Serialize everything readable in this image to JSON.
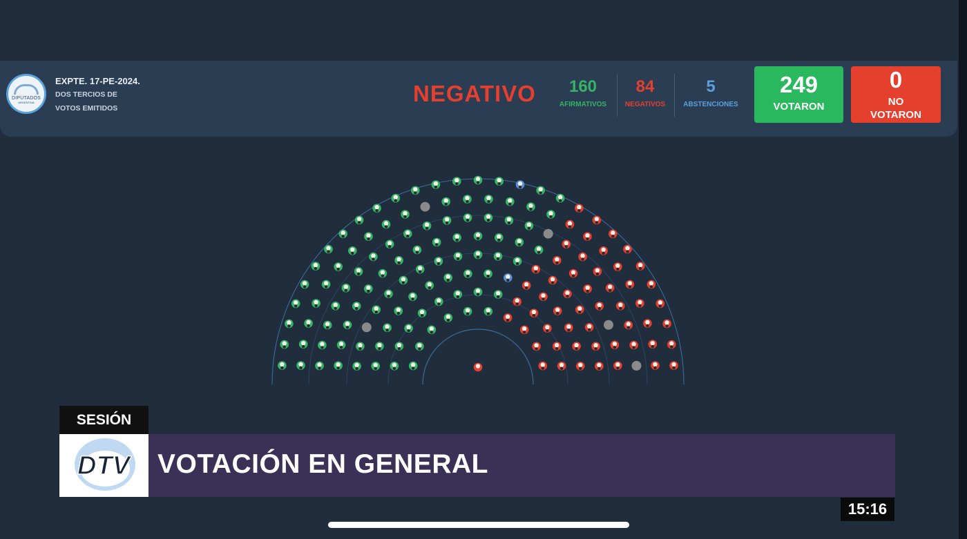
{
  "header": {
    "expediente": "EXPTE. 17-PE-2024.",
    "rule_line1": "DOS TERCIOS DE",
    "rule_line2": "VOTOS EMITIDOS",
    "logo_text": "DIPUTADOS",
    "logo_subtext": "ARGENTINA",
    "result": "NEGATIVO",
    "afirmativos": {
      "value": "160",
      "label": "AFIRMATIVOS"
    },
    "negativos": {
      "value": "84",
      "label": "NEGATIVOS"
    },
    "abstenciones": {
      "value": "5",
      "label": "ABSTENCIONES"
    },
    "votaron": {
      "value": "249",
      "label": "VOTARON"
    },
    "no_votaron": {
      "value": "0",
      "label_line1": "NO",
      "label_line2": "VOTARON"
    }
  },
  "chamber": {
    "colors": {
      "afirmativo": "#35b466",
      "negativo": "#e53f2f",
      "abstencion": "#5a8fd6",
      "ausente": "#8a8a8a"
    }
  },
  "lower_third": {
    "tag": "SESIÓN",
    "title": "VOTACIÓN EN GENERAL",
    "logo": "DTV",
    "clock": "15:16"
  },
  "colors": {
    "background": "#1f2d3d",
    "header_bar": "#2b3d52",
    "afirmativo": "#35b466",
    "negativo": "#e53f2f",
    "abstencion": "#5aa0dc",
    "title_bar": "#3b3156"
  }
}
